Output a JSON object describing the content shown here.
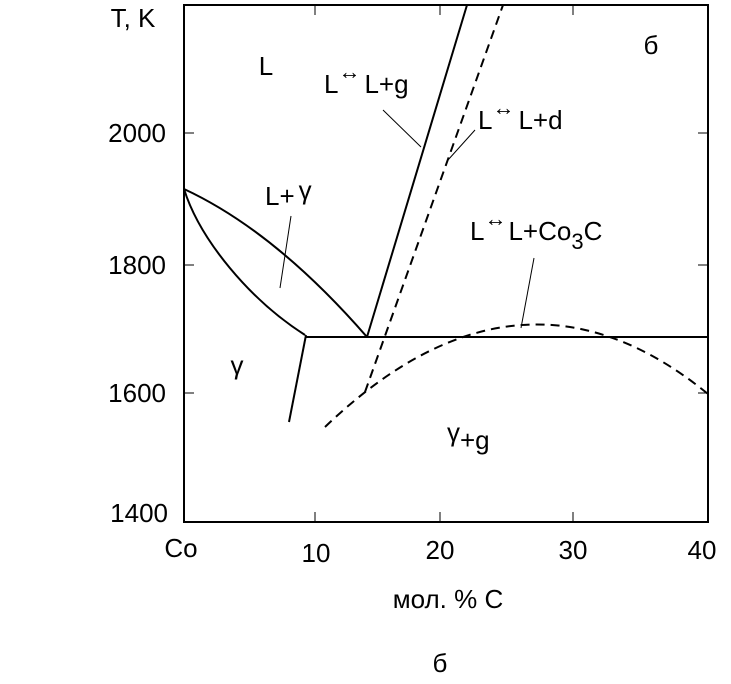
{
  "axes": {
    "y_label": "T, K",
    "x_label": "мол. % C",
    "x_origin_label": "Co",
    "y_ticks": [
      2000,
      1800,
      1600,
      1400
    ],
    "x_ticks": [
      10,
      20,
      30,
      40
    ]
  },
  "labels": {
    "panel": "б",
    "liquid": "L",
    "liquid_gamma": [
      "L+",
      "γ"
    ],
    "gamma": "γ",
    "gamma_graphite": [
      "γ",
      "+g"
    ],
    "reaction_g": [
      "L",
      "↔",
      "L+g"
    ],
    "reaction_d": [
      "L",
      "↔",
      "L+d"
    ],
    "reaction_co3c": [
      "L",
      "↔",
      "L+Co",
      "3",
      "C"
    ]
  },
  "caption": "б"
}
